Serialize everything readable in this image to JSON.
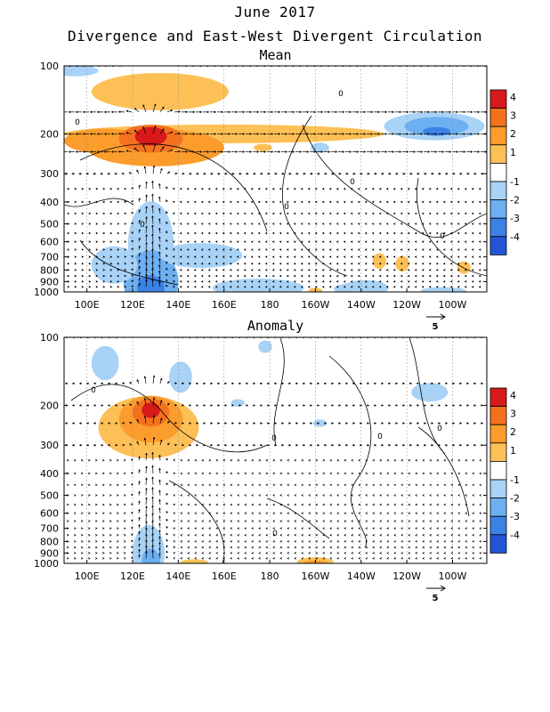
{
  "title": "June 2017",
  "subtitle": "Divergence and East-West Divergent Circulation",
  "chart_data": [
    {
      "type": "heatmap",
      "panel_title": "Mean",
      "x_ticks": [
        "100E",
        "120E",
        "140E",
        "160E",
        "180",
        "160W",
        "140W",
        "120W",
        "100W"
      ],
      "y_ticks": [
        "100",
        "200",
        "300",
        "400",
        "500",
        "600",
        "700",
        "800",
        "900",
        "1000"
      ],
      "colorbar": [
        "4",
        "3",
        "2",
        "1",
        "-1",
        "-2",
        "-3",
        "-4"
      ],
      "colorbar_colors": [
        "#d7191c",
        "#f4711e",
        "#fb9c2c",
        "#fdc056",
        "#ffffff",
        "#a8d2f6",
        "#6db0f2",
        "#3c82e6",
        "#2256d6",
        "#8a70e0"
      ],
      "contour_label": "0",
      "vector_ref": "5",
      "features": [
        {
          "type": "positive",
          "lon": 128,
          "p": 210,
          "level": 4
        },
        {
          "type": "positive",
          "lon": 128,
          "p": 250,
          "level": 3
        },
        {
          "type": "negative",
          "lon": 253,
          "p": 190,
          "level": -3
        },
        {
          "type": "negative",
          "lon": 128,
          "p": 900,
          "level": -3
        },
        {
          "type": "negative",
          "lon": 150,
          "p": 700,
          "level": -1
        }
      ]
    },
    {
      "type": "heatmap",
      "panel_title": "Anomaly",
      "x_ticks": [
        "100E",
        "120E",
        "140E",
        "160E",
        "180",
        "160W",
        "140W",
        "120W",
        "100W"
      ],
      "y_ticks": [
        "100",
        "200",
        "300",
        "400",
        "500",
        "600",
        "700",
        "800",
        "900",
        "1000"
      ],
      "colorbar": [
        "4",
        "3",
        "2",
        "1",
        "-1",
        "-2",
        "-3",
        "-4"
      ],
      "colorbar_colors": [
        "#d7191c",
        "#f4711e",
        "#fb9c2c",
        "#fdc056",
        "#ffffff",
        "#a8d2f6",
        "#6db0f2",
        "#3c82e6",
        "#2256d6",
        "#8a70e0"
      ],
      "contour_label": "0",
      "vector_ref": "5",
      "features": [
        {
          "type": "positive",
          "lon": 128,
          "p": 210,
          "level": 4
        },
        {
          "type": "positive",
          "lon": 125,
          "p": 260,
          "level": 2
        },
        {
          "type": "negative",
          "lon": 127,
          "p": 980,
          "level": -2
        },
        {
          "type": "negative",
          "lon": 250,
          "p": 170,
          "level": -1
        },
        {
          "type": "positive",
          "lon": 200,
          "p": 990,
          "level": 2
        }
      ]
    }
  ]
}
